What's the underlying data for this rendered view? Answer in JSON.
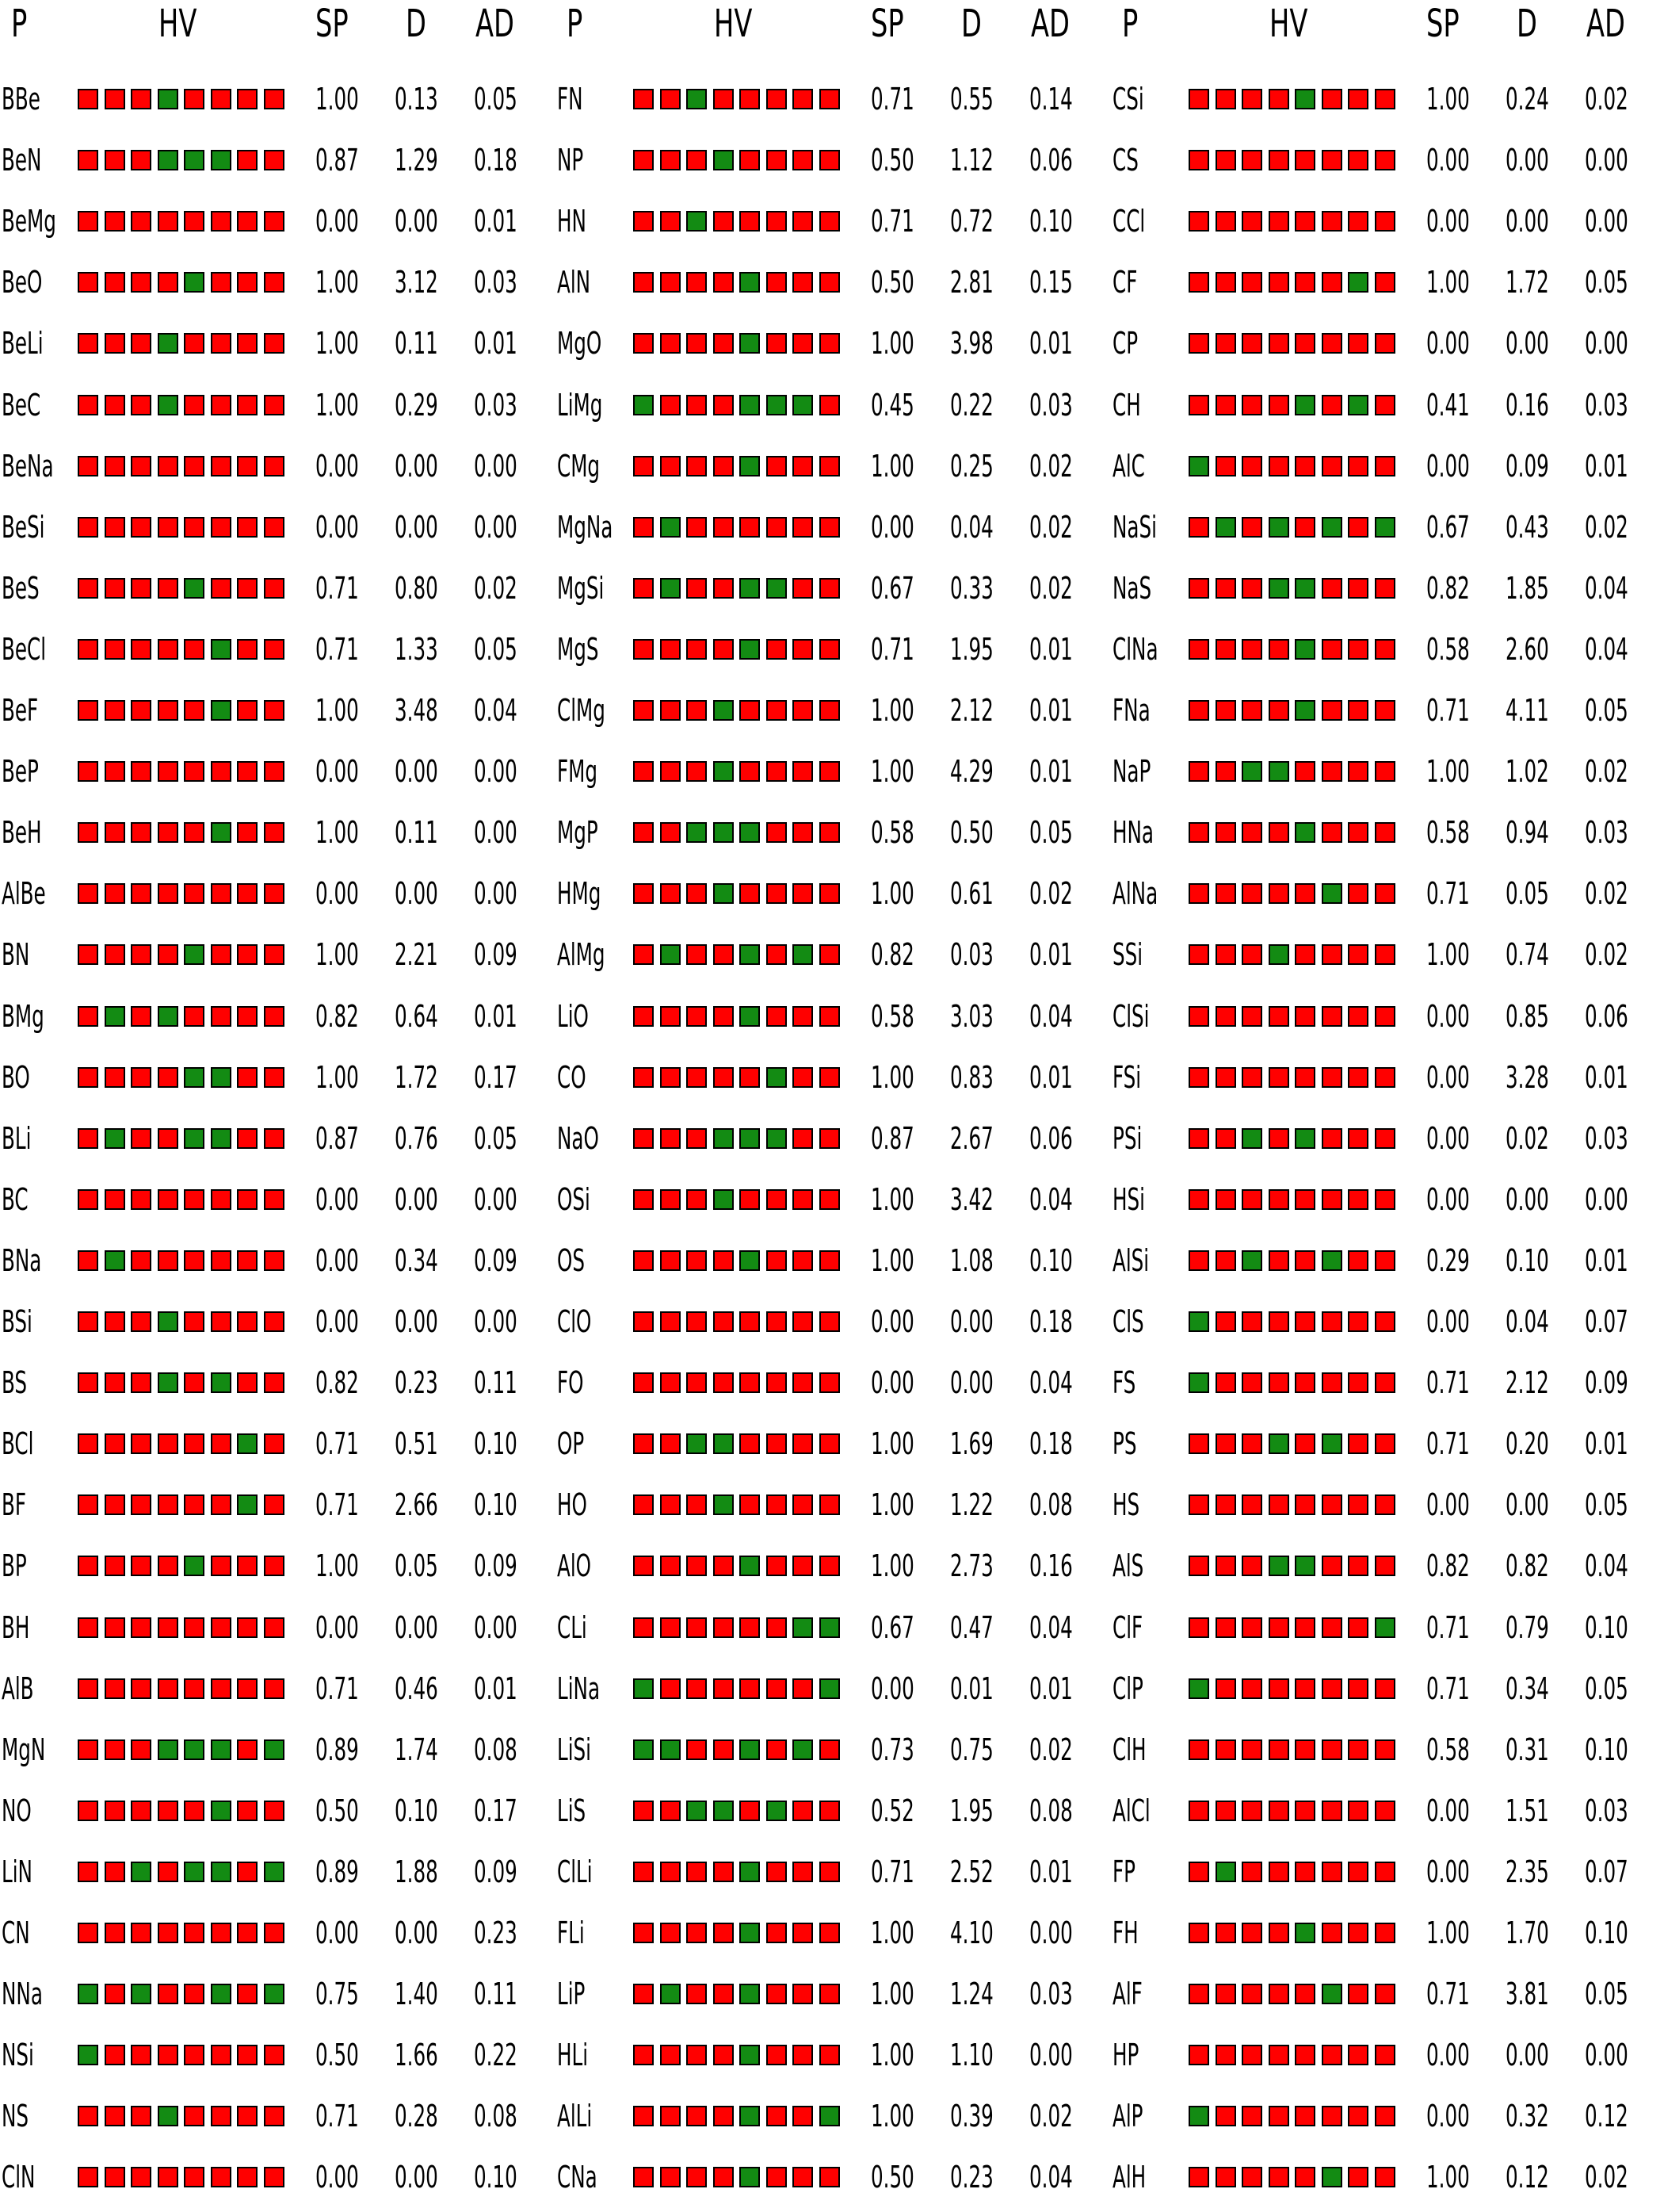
{
  "chart_data": {
    "type": "table",
    "colors": {
      "high": "#ff0000",
      "low": "#138b13",
      "border": "#000000"
    },
    "headers": [
      "P",
      "HV",
      "SP",
      "D",
      "AD"
    ],
    "hv_encoding": "string of 8 cells per row: R = red, G = green",
    "groups": [
      {
        "rows": [
          {
            "p": "BBe",
            "hv": "RRRGRRRR",
            "sp": "1.00",
            "d": "0.13",
            "ad": "0.05"
          },
          {
            "p": "BeN",
            "hv": "RRRGGGRR",
            "sp": "0.87",
            "d": "1.29",
            "ad": "0.18"
          },
          {
            "p": "BeMg",
            "hv": "RRRRRRRR",
            "sp": "0.00",
            "d": "0.00",
            "ad": "0.01"
          },
          {
            "p": "BeO",
            "hv": "RRRRGRRR",
            "sp": "1.00",
            "d": "3.12",
            "ad": "0.03"
          },
          {
            "p": "BeLi",
            "hv": "RRRGRRRR",
            "sp": "1.00",
            "d": "0.11",
            "ad": "0.01"
          },
          {
            "p": "BeC",
            "hv": "RRRGRRRR",
            "sp": "1.00",
            "d": "0.29",
            "ad": "0.03"
          },
          {
            "p": "BeNa",
            "hv": "RRRRRRRR",
            "sp": "0.00",
            "d": "0.00",
            "ad": "0.00"
          },
          {
            "p": "BeSi",
            "hv": "RRRRRRRR",
            "sp": "0.00",
            "d": "0.00",
            "ad": "0.00"
          },
          {
            "p": "BeS",
            "hv": "RRRRGRRR",
            "sp": "0.71",
            "d": "0.80",
            "ad": "0.02"
          },
          {
            "p": "BeCl",
            "hv": "RRRRRGRR",
            "sp": "0.71",
            "d": "1.33",
            "ad": "0.05"
          },
          {
            "p": "BeF",
            "hv": "RRRRRGRR",
            "sp": "1.00",
            "d": "3.48",
            "ad": "0.04"
          },
          {
            "p": "BeP",
            "hv": "RRRRRRRR",
            "sp": "0.00",
            "d": "0.00",
            "ad": "0.00"
          },
          {
            "p": "BeH",
            "hv": "RRRRRGRR",
            "sp": "1.00",
            "d": "0.11",
            "ad": "0.00"
          },
          {
            "p": "AlBe",
            "hv": "RRRRRRRR",
            "sp": "0.00",
            "d": "0.00",
            "ad": "0.00"
          },
          {
            "p": "BN",
            "hv": "RRRRGRRR",
            "sp": "1.00",
            "d": "2.21",
            "ad": "0.09"
          },
          {
            "p": "BMg",
            "hv": "RGRGRRRR",
            "sp": "0.82",
            "d": "0.64",
            "ad": "0.01"
          },
          {
            "p": "BO",
            "hv": "RRRRGGRR",
            "sp": "1.00",
            "d": "1.72",
            "ad": "0.17"
          },
          {
            "p": "BLi",
            "hv": "RGRRGGRR",
            "sp": "0.87",
            "d": "0.76",
            "ad": "0.05"
          },
          {
            "p": "BC",
            "hv": "RRRRRRRR",
            "sp": "0.00",
            "d": "0.00",
            "ad": "0.00"
          },
          {
            "p": "BNa",
            "hv": "RGRRRRRR",
            "sp": "0.00",
            "d": "0.34",
            "ad": "0.09"
          },
          {
            "p": "BSi",
            "hv": "RRRGRRRR",
            "sp": "0.00",
            "d": "0.00",
            "ad": "0.00"
          },
          {
            "p": "BS",
            "hv": "RRRGRGRR",
            "sp": "0.82",
            "d": "0.23",
            "ad": "0.11"
          },
          {
            "p": "BCl",
            "hv": "RRRRRRGR",
            "sp": "0.71",
            "d": "0.51",
            "ad": "0.10"
          },
          {
            "p": "BF",
            "hv": "RRRRRRGR",
            "sp": "0.71",
            "d": "2.66",
            "ad": "0.10"
          },
          {
            "p": "BP",
            "hv": "RRRRGRRR",
            "sp": "1.00",
            "d": "0.05",
            "ad": "0.09"
          },
          {
            "p": "BH",
            "hv": "RRRRRRRR",
            "sp": "0.00",
            "d": "0.00",
            "ad": "0.00"
          },
          {
            "p": "AlB",
            "hv": "RRRRRRRR",
            "sp": "0.71",
            "d": "0.46",
            "ad": "0.01"
          },
          {
            "p": "MgN",
            "hv": "RRRGGGRG",
            "sp": "0.89",
            "d": "1.74",
            "ad": "0.08"
          },
          {
            "p": "NO",
            "hv": "RRRRRGRR",
            "sp": "0.50",
            "d": "0.10",
            "ad": "0.17"
          },
          {
            "p": "LiN",
            "hv": "RRGRGGRG",
            "sp": "0.89",
            "d": "1.88",
            "ad": "0.09"
          },
          {
            "p": "CN",
            "hv": "RRRRRRRR",
            "sp": "0.00",
            "d": "0.00",
            "ad": "0.23"
          },
          {
            "p": "NNa",
            "hv": "GRGRRGRG",
            "sp": "0.75",
            "d": "1.40",
            "ad": "0.11"
          },
          {
            "p": "NSi",
            "hv": "GRRRRRRR",
            "sp": "0.50",
            "d": "1.66",
            "ad": "0.22"
          },
          {
            "p": "NS",
            "hv": "RRRGRRRR",
            "sp": "0.71",
            "d": "0.28",
            "ad": "0.08"
          },
          {
            "p": "ClN",
            "hv": "RRRRRRRR",
            "sp": "0.00",
            "d": "0.00",
            "ad": "0.10"
          }
        ]
      },
      {
        "rows": [
          {
            "p": "FN",
            "hv": "RRGRRRRR",
            "sp": "0.71",
            "d": "0.55",
            "ad": "0.14"
          },
          {
            "p": "NP",
            "hv": "RRRGRRRR",
            "sp": "0.50",
            "d": "1.12",
            "ad": "0.06"
          },
          {
            "p": "HN",
            "hv": "RRGRRRRR",
            "sp": "0.71",
            "d": "0.72",
            "ad": "0.10"
          },
          {
            "p": "AlN",
            "hv": "RRRRGRRR",
            "sp": "0.50",
            "d": "2.81",
            "ad": "0.15"
          },
          {
            "p": "MgO",
            "hv": "RRRRGRRR",
            "sp": "1.00",
            "d": "3.98",
            "ad": "0.01"
          },
          {
            "p": "LiMg",
            "hv": "GRRRGGGR",
            "sp": "0.45",
            "d": "0.22",
            "ad": "0.03"
          },
          {
            "p": "CMg",
            "hv": "RRRRGRRR",
            "sp": "1.00",
            "d": "0.25",
            "ad": "0.02"
          },
          {
            "p": "MgNa",
            "hv": "RGRRRRRR",
            "sp": "0.00",
            "d": "0.04",
            "ad": "0.02"
          },
          {
            "p": "MgSi",
            "hv": "RGRRGGRR",
            "sp": "0.67",
            "d": "0.33",
            "ad": "0.02"
          },
          {
            "p": "MgS",
            "hv": "RRRRGRRR",
            "sp": "0.71",
            "d": "1.95",
            "ad": "0.01"
          },
          {
            "p": "ClMg",
            "hv": "RRRGRRRR",
            "sp": "1.00",
            "d": "2.12",
            "ad": "0.01"
          },
          {
            "p": "FMg",
            "hv": "RRRGRRRR",
            "sp": "1.00",
            "d": "4.29",
            "ad": "0.01"
          },
          {
            "p": "MgP",
            "hv": "RRGGGRRR",
            "sp": "0.58",
            "d": "0.50",
            "ad": "0.05"
          },
          {
            "p": "HMg",
            "hv": "RRRGRRRR",
            "sp": "1.00",
            "d": "0.61",
            "ad": "0.02"
          },
          {
            "p": "AlMg",
            "hv": "RGRRGRGR",
            "sp": "0.82",
            "d": "0.03",
            "ad": "0.01"
          },
          {
            "p": "LiO",
            "hv": "RRRRGRRR",
            "sp": "0.58",
            "d": "3.03",
            "ad": "0.04"
          },
          {
            "p": "CO",
            "hv": "RRRRRGRR",
            "sp": "1.00",
            "d": "0.83",
            "ad": "0.01"
          },
          {
            "p": "NaO",
            "hv": "RRRGGGRR",
            "sp": "0.87",
            "d": "2.67",
            "ad": "0.06"
          },
          {
            "p": "OSi",
            "hv": "RRRGRRRR",
            "sp": "1.00",
            "d": "3.42",
            "ad": "0.04"
          },
          {
            "p": "OS",
            "hv": "RRRRGRRR",
            "sp": "1.00",
            "d": "1.08",
            "ad": "0.10"
          },
          {
            "p": "ClO",
            "hv": "RRRRRRRR",
            "sp": "0.00",
            "d": "0.00",
            "ad": "0.18"
          },
          {
            "p": "FO",
            "hv": "RRRRRRRR",
            "sp": "0.00",
            "d": "0.00",
            "ad": "0.04"
          },
          {
            "p": "OP",
            "hv": "RRGGRRRR",
            "sp": "1.00",
            "d": "1.69",
            "ad": "0.18"
          },
          {
            "p": "HO",
            "hv": "RRRGRRRR",
            "sp": "1.00",
            "d": "1.22",
            "ad": "0.08"
          },
          {
            "p": "AlO",
            "hv": "RRRRGRRR",
            "sp": "1.00",
            "d": "2.73",
            "ad": "0.16"
          },
          {
            "p": "CLi",
            "hv": "RRRRRRGG",
            "sp": "0.67",
            "d": "0.47",
            "ad": "0.04"
          },
          {
            "p": "LiNa",
            "hv": "GRRRRRRG",
            "sp": "0.00",
            "d": "0.01",
            "ad": "0.01"
          },
          {
            "p": "LiSi",
            "hv": "GGRRGRGR",
            "sp": "0.73",
            "d": "0.75",
            "ad": "0.02"
          },
          {
            "p": "LiS",
            "hv": "RRGGRGRR",
            "sp": "0.52",
            "d": "1.95",
            "ad": "0.08"
          },
          {
            "p": "ClLi",
            "hv": "RRRRGRRR",
            "sp": "0.71",
            "d": "2.52",
            "ad": "0.01"
          },
          {
            "p": "FLi",
            "hv": "RRRRGRRR",
            "sp": "1.00",
            "d": "4.10",
            "ad": "0.00"
          },
          {
            "p": "LiP",
            "hv": "RGRRGRRR",
            "sp": "1.00",
            "d": "1.24",
            "ad": "0.03"
          },
          {
            "p": "HLi",
            "hv": "RRRRGRRR",
            "sp": "1.00",
            "d": "1.10",
            "ad": "0.00"
          },
          {
            "p": "AlLi",
            "hv": "RRRRGRRG",
            "sp": "1.00",
            "d": "0.39",
            "ad": "0.02"
          },
          {
            "p": "CNa",
            "hv": "RRRRGRRR",
            "sp": "0.50",
            "d": "0.23",
            "ad": "0.04"
          }
        ]
      },
      {
        "rows": [
          {
            "p": "CSi",
            "hv": "RRRRGRRR",
            "sp": "1.00",
            "d": "0.24",
            "ad": "0.02"
          },
          {
            "p": "CS",
            "hv": "RRRRRRRR",
            "sp": "0.00",
            "d": "0.00",
            "ad": "0.00"
          },
          {
            "p": "CCl",
            "hv": "RRRRRRRR",
            "sp": "0.00",
            "d": "0.00",
            "ad": "0.00"
          },
          {
            "p": "CF",
            "hv": "RRRRRRGR",
            "sp": "1.00",
            "d": "1.72",
            "ad": "0.05"
          },
          {
            "p": "CP",
            "hv": "RRRRRRRR",
            "sp": "0.00",
            "d": "0.00",
            "ad": "0.00"
          },
          {
            "p": "CH",
            "hv": "RRRRGRGR",
            "sp": "0.41",
            "d": "0.16",
            "ad": "0.03"
          },
          {
            "p": "AlC",
            "hv": "GRRRRRRR",
            "sp": "0.00",
            "d": "0.09",
            "ad": "0.01"
          },
          {
            "p": "NaSi",
            "hv": "RGRGRGRG",
            "sp": "0.67",
            "d": "0.43",
            "ad": "0.02"
          },
          {
            "p": "NaS",
            "hv": "RRRGGRRR",
            "sp": "0.82",
            "d": "1.85",
            "ad": "0.04"
          },
          {
            "p": "ClNa",
            "hv": "RRRRGRRR",
            "sp": "0.58",
            "d": "2.60",
            "ad": "0.04"
          },
          {
            "p": "FNa",
            "hv": "RRRRGRRR",
            "sp": "0.71",
            "d": "4.11",
            "ad": "0.05"
          },
          {
            "p": "NaP",
            "hv": "RRGGRRRR",
            "sp": "1.00",
            "d": "1.02",
            "ad": "0.02"
          },
          {
            "p": "HNa",
            "hv": "RRRRGRRR",
            "sp": "0.58",
            "d": "0.94",
            "ad": "0.03"
          },
          {
            "p": "AlNa",
            "hv": "RRRRRGRR",
            "sp": "0.71",
            "d": "0.05",
            "ad": "0.02"
          },
          {
            "p": "SSi",
            "hv": "RRRGRRRR",
            "sp": "1.00",
            "d": "0.74",
            "ad": "0.02"
          },
          {
            "p": "ClSi",
            "hv": "RRRRRRRR",
            "sp": "0.00",
            "d": "0.85",
            "ad": "0.06"
          },
          {
            "p": "FSi",
            "hv": "RRRRRRRR",
            "sp": "0.00",
            "d": "3.28",
            "ad": "0.01"
          },
          {
            "p": "PSi",
            "hv": "RRGRGRRR",
            "sp": "0.00",
            "d": "0.02",
            "ad": "0.03"
          },
          {
            "p": "HSi",
            "hv": "RRRRRRRR",
            "sp": "0.00",
            "d": "0.00",
            "ad": "0.00"
          },
          {
            "p": "AlSi",
            "hv": "RRGRRGRR",
            "sp": "0.29",
            "d": "0.10",
            "ad": "0.01"
          },
          {
            "p": "ClS",
            "hv": "GRRRRRRR",
            "sp": "0.00",
            "d": "0.04",
            "ad": "0.07"
          },
          {
            "p": "FS",
            "hv": "GRRRRRRR",
            "sp": "0.71",
            "d": "2.12",
            "ad": "0.09"
          },
          {
            "p": "PS",
            "hv": "RRRGRGRR",
            "sp": "0.71",
            "d": "0.20",
            "ad": "0.01"
          },
          {
            "p": "HS",
            "hv": "RRRRRRRR",
            "sp": "0.00",
            "d": "0.00",
            "ad": "0.05"
          },
          {
            "p": "AlS",
            "hv": "RRRGGRRR",
            "sp": "0.82",
            "d": "0.82",
            "ad": "0.04"
          },
          {
            "p": "ClF",
            "hv": "RRRRRRRG",
            "sp": "0.71",
            "d": "0.79",
            "ad": "0.10"
          },
          {
            "p": "ClP",
            "hv": "GRRRRRRR",
            "sp": "0.71",
            "d": "0.34",
            "ad": "0.05"
          },
          {
            "p": "ClH",
            "hv": "RRRRRRRR",
            "sp": "0.58",
            "d": "0.31",
            "ad": "0.10"
          },
          {
            "p": "AlCl",
            "hv": "RRRRRRRR",
            "sp": "0.00",
            "d": "1.51",
            "ad": "0.03"
          },
          {
            "p": "FP",
            "hv": "RGRRRRRR",
            "sp": "0.00",
            "d": "2.35",
            "ad": "0.07"
          },
          {
            "p": "FH",
            "hv": "RRRRGRRR",
            "sp": "1.00",
            "d": "1.70",
            "ad": "0.10"
          },
          {
            "p": "AlF",
            "hv": "RRRRRGRR",
            "sp": "0.71",
            "d": "3.81",
            "ad": "0.05"
          },
          {
            "p": "HP",
            "hv": "RRRRRRRR",
            "sp": "0.00",
            "d": "0.00",
            "ad": "0.00"
          },
          {
            "p": "AlP",
            "hv": "GRRRRRRR",
            "sp": "0.00",
            "d": "0.32",
            "ad": "0.12"
          },
          {
            "p": "AlH",
            "hv": "RRRRRGRR",
            "sp": "1.00",
            "d": "0.12",
            "ad": "0.02"
          }
        ]
      }
    ]
  }
}
